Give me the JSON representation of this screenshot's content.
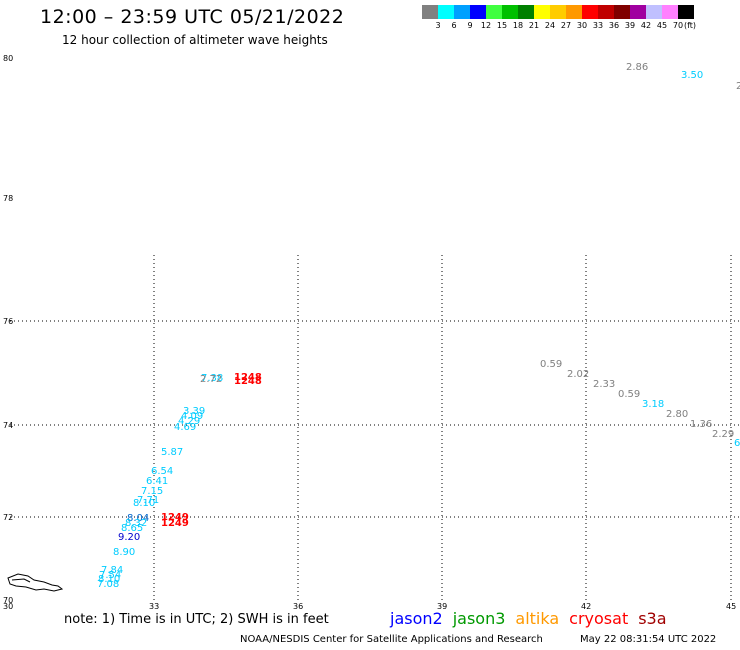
{
  "header": {
    "title": "12:00 – 23:59 UTC 05/21/2022",
    "subtitle": "12 hour collection of altimeter wave heights"
  },
  "colorbar": {
    "unit": "(ft)",
    "bins": [
      {
        "label": "3",
        "color": "#808080"
      },
      {
        "label": "6",
        "color": "#00ffff"
      },
      {
        "label": "9",
        "color": "#00a0ff"
      },
      {
        "label": "12",
        "color": "#0000ff"
      },
      {
        "label": "15",
        "color": "#40ff40"
      },
      {
        "label": "18",
        "color": "#00c000"
      },
      {
        "label": "21",
        "color": "#008000"
      },
      {
        "label": "24",
        "color": "#ffff00"
      },
      {
        "label": "27",
        "color": "#ffcc00"
      },
      {
        "label": "30",
        "color": "#ff9900"
      },
      {
        "label": "33",
        "color": "#ff0000"
      },
      {
        "label": "36",
        "color": "#c00000"
      },
      {
        "label": "39",
        "color": "#800000"
      },
      {
        "label": "42",
        "color": "#a000a0"
      },
      {
        "label": "45",
        "color": "#c0c0ff"
      },
      {
        "label": "70",
        "color": "#ff80ff"
      },
      {
        "label": "",
        "color": "#000000"
      }
    ]
  },
  "axes": {
    "lat_labels": [
      "80",
      "78",
      "76",
      "74",
      "72",
      "70"
    ],
    "lon_labels": [
      "30",
      "33",
      "36",
      "39",
      "42",
      "45"
    ]
  },
  "observations": [
    {
      "text": "2.86",
      "color": "#808080"
    },
    {
      "text": "3.50",
      "color": "#00ccff"
    },
    {
      "text": "2",
      "color": "#808080"
    },
    {
      "text": "7.38",
      "color": "#00ccff"
    },
    {
      "text": "2.72",
      "color": "#808080"
    },
    {
      "text": "1248",
      "color": "#ff0000"
    },
    {
      "text": "1248",
      "color": "#ff0000"
    },
    {
      "text": "3.39",
      "color": "#00ccff"
    },
    {
      "text": "4.09",
      "color": "#00ccff"
    },
    {
      "text": "4.29",
      "color": "#00ccff"
    },
    {
      "text": "4.69",
      "color": "#00ccff"
    },
    {
      "text": "5.87",
      "color": "#00ccff"
    },
    {
      "text": "6.54",
      "color": "#00ccff"
    },
    {
      "text": "6.41",
      "color": "#00ccff"
    },
    {
      "text": "7.15",
      "color": "#00ccff"
    },
    {
      "text": "7.71",
      "color": "#00ccff"
    },
    {
      "text": "8.10",
      "color": "#00ccff"
    },
    {
      "text": "8.04",
      "color": "#0066cc"
    },
    {
      "text": "8.32",
      "color": "#00ccff"
    },
    {
      "text": "8.65",
      "color": "#00ccff"
    },
    {
      "text": "9.20",
      "color": "#0000cc"
    },
    {
      "text": "1249",
      "color": "#ff0000"
    },
    {
      "text": "1249",
      "color": "#ff0000"
    },
    {
      "text": "8.90",
      "color": "#00ccff"
    },
    {
      "text": "7.84",
      "color": "#00ccff"
    },
    {
      "text": "7.54",
      "color": "#00ccff"
    },
    {
      "text": "8.10",
      "color": "#00ccff"
    },
    {
      "text": "7.08",
      "color": "#00ccff"
    },
    {
      "text": "0.59",
      "color": "#808080"
    },
    {
      "text": "2.02",
      "color": "#808080"
    },
    {
      "text": "2.33",
      "color": "#808080"
    },
    {
      "text": "0.59",
      "color": "#808080"
    },
    {
      "text": "3.18",
      "color": "#00ccff"
    },
    {
      "text": "2.80",
      "color": "#808080"
    },
    {
      "text": "1.36",
      "color": "#808080"
    },
    {
      "text": "2.29",
      "color": "#808080"
    },
    {
      "text": "6",
      "color": "#00ccff"
    }
  ],
  "footer": {
    "note": "note:  1) Time is in UTC;  2) SWH is in feet",
    "legend": [
      {
        "label": "jason2",
        "color": "#0000ff"
      },
      {
        "label": "jason3",
        "color": "#009900"
      },
      {
        "label": "altika",
        "color": "#ff9900"
      },
      {
        "label": "cryosat",
        "color": "#ff0000"
      },
      {
        "label": "s3a",
        "color": "#a00000"
      }
    ],
    "credit": "NOAA/NESDIS Center for Satellite Applications and Research",
    "timestamp": "May 22 08:31:54 UTC 2022"
  }
}
